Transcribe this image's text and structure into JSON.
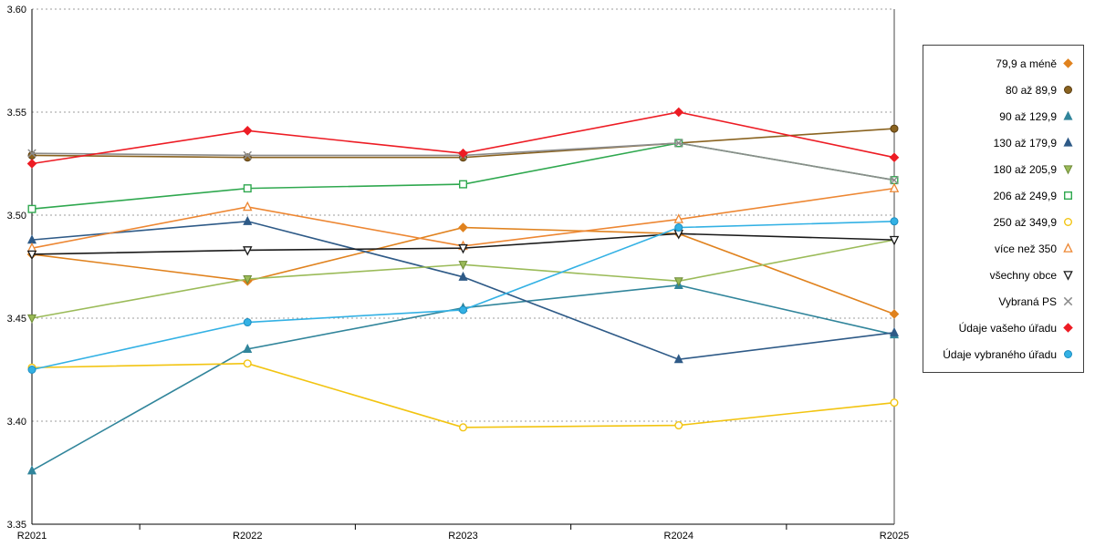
{
  "chart_data": {
    "type": "line",
    "title": "",
    "xlabel": "",
    "ylabel": "",
    "categories": [
      "R2021",
      "R2022",
      "R2023",
      "R2024",
      "R2025"
    ],
    "ylim": [
      3.35,
      3.6
    ],
    "y_ticks": [
      "3.35",
      "3.40",
      "3.45",
      "3.50",
      "3.55",
      "3.60"
    ],
    "grid": "horizontal-dotted",
    "legend_position": "right",
    "series": [
      {
        "name": "79,9 a méně",
        "color": "#E0821E",
        "marker": "diamond",
        "values": [
          3.481,
          3.468,
          3.494,
          3.491,
          3.452
        ]
      },
      {
        "name": "80 až 89,9",
        "color": "#8A6320",
        "marker": "circle",
        "marker_edge": "#5a3d10",
        "values": [
          3.529,
          3.528,
          3.528,
          3.535,
          3.542
        ]
      },
      {
        "name": "90 až 129,9",
        "color": "#31859B",
        "marker": "triangle",
        "values": [
          3.376,
          3.435,
          3.455,
          3.466,
          3.442
        ]
      },
      {
        "name": "130 až 179,9",
        "color": "#2E5A87",
        "marker": "triangle",
        "values": [
          3.488,
          3.497,
          3.47,
          3.43,
          3.443
        ]
      },
      {
        "name": "180 až 205,9",
        "color": "#9BBB59",
        "marker": "triangle-down",
        "marker_edge": "#6d8a36",
        "values": [
          3.45,
          3.469,
          3.476,
          3.468,
          3.488
        ]
      },
      {
        "name": "206 až 249,9",
        "color": "#2FA84F",
        "marker": "square-open",
        "values": [
          3.503,
          3.513,
          3.515,
          3.535,
          3.517
        ]
      },
      {
        "name": "250 až 349,9",
        "color": "#F2C411",
        "marker": "circle-open",
        "values": [
          3.426,
          3.428,
          3.397,
          3.398,
          3.409
        ]
      },
      {
        "name": "více než 350",
        "color": "#ED8733",
        "marker": "triangle-open",
        "values": [
          3.484,
          3.504,
          3.485,
          3.498,
          3.513
        ]
      },
      {
        "name": "všechny obce",
        "color": "#1A1A1A",
        "marker": "triangle-down-open",
        "values": [
          3.481,
          3.483,
          3.484,
          3.491,
          3.488
        ]
      },
      {
        "name": "Vybraná PS",
        "color": "#8C8C8C",
        "marker": "x",
        "values": [
          3.53,
          3.529,
          3.529,
          3.535,
          3.517
        ]
      },
      {
        "name": "Údaje vašeho úřadu",
        "color": "#ED1C24",
        "marker": "diamond",
        "values": [
          3.525,
          3.541,
          3.53,
          3.55,
          3.528
        ]
      },
      {
        "name": "Údaje vybraného úřadu",
        "color": "#33B1E4",
        "marker": "circle",
        "marker_edge": "#1b8cc0",
        "values": [
          3.425,
          3.448,
          3.454,
          3.494,
          3.497
        ]
      }
    ]
  }
}
